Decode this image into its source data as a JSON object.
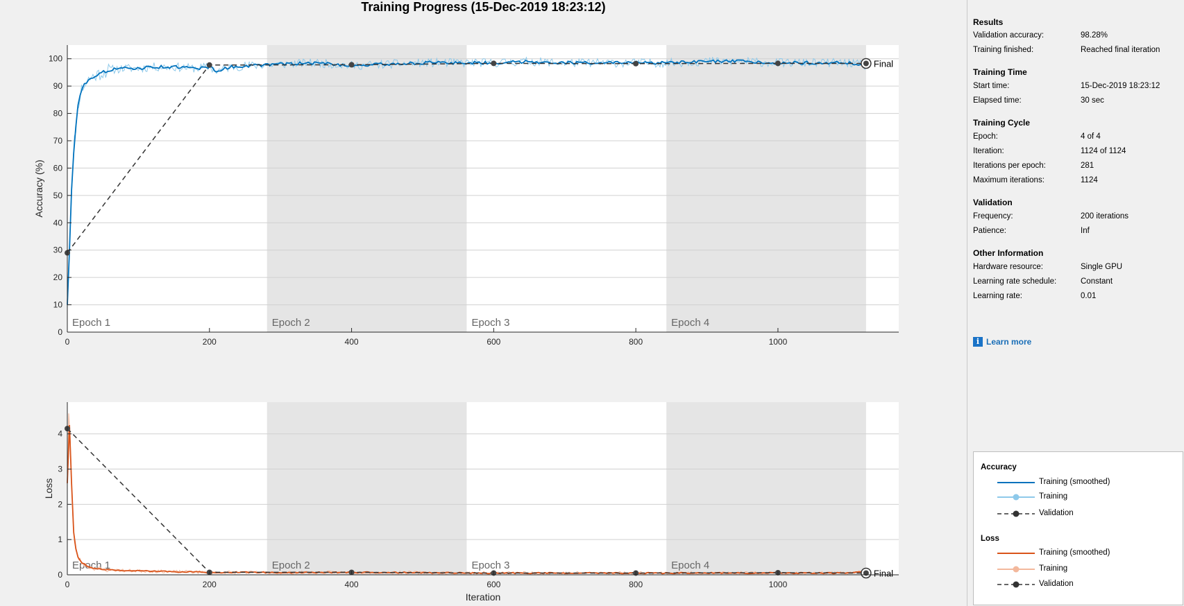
{
  "title": "Training Progress (15-Dec-2019 18:23:12)",
  "colors": {
    "accuracy_smoothed": "#0072bd",
    "accuracy_raw": "#8ec9ea",
    "loss_smoothed": "#d95319",
    "loss_raw": "#f3b89c",
    "validation": "#333333",
    "epoch_shade": "#e5e5e5"
  },
  "results": {
    "heading": "Results",
    "validation_accuracy_label": "Validation accuracy:",
    "validation_accuracy_value": "98.28%",
    "training_finished_label": "Training finished:",
    "training_finished_value": "Reached final iteration"
  },
  "training_time": {
    "heading": "Training Time",
    "start_time_label": "Start time:",
    "start_time_value": "15-Dec-2019 18:23:12",
    "elapsed_time_label": "Elapsed time:",
    "elapsed_time_value": "30 sec"
  },
  "training_cycle": {
    "heading": "Training Cycle",
    "epoch_label": "Epoch:",
    "epoch_value": "4 of 4",
    "iteration_label": "Iteration:",
    "iteration_value": "1124 of 1124",
    "iter_per_epoch_label": "Iterations per epoch:",
    "iter_per_epoch_value": "281",
    "max_iter_label": "Maximum iterations:",
    "max_iter_value": "1124"
  },
  "validation": {
    "heading": "Validation",
    "frequency_label": "Frequency:",
    "frequency_value": "200 iterations",
    "patience_label": "Patience:",
    "patience_value": "Inf"
  },
  "other_info": {
    "heading": "Other Information",
    "hardware_label": "Hardware resource:",
    "hardware_value": "Single GPU",
    "lr_schedule_label": "Learning rate schedule:",
    "lr_schedule_value": "Constant",
    "lr_label": "Learning rate:",
    "lr_value": "0.01"
  },
  "learn_more": {
    "icon": "info-icon",
    "label": "Learn more"
  },
  "legend": {
    "accuracy_heading": "Accuracy",
    "loss_heading": "Loss",
    "training_smoothed": "Training (smoothed)",
    "training": "Training",
    "validation": "Validation"
  },
  "chart_data": [
    {
      "type": "line",
      "xlabel": "Iteration",
      "ylabel": "Accuracy (%)",
      "xlim": [
        0,
        1170
      ],
      "ylim": [
        0,
        105
      ],
      "xticks": [
        0,
        200,
        400,
        600,
        800,
        1000
      ],
      "yticks": [
        0,
        10,
        20,
        30,
        40,
        50,
        60,
        70,
        80,
        90,
        100
      ],
      "grid": "horizontal",
      "epochs": [
        {
          "label": "Epoch 1",
          "start": 0,
          "end": 281,
          "shaded": false
        },
        {
          "label": "Epoch 2",
          "start": 281,
          "end": 562,
          "shaded": true
        },
        {
          "label": "Epoch 3",
          "start": 562,
          "end": 843,
          "shaded": false
        },
        {
          "label": "Epoch 4",
          "start": 843,
          "end": 1124,
          "shaded": true
        }
      ],
      "final_label": "Final",
      "series": [
        {
          "name": "Training (smoothed)",
          "x": [
            0,
            3,
            6,
            10,
            15,
            20,
            30,
            40,
            50,
            60,
            80,
            100,
            120,
            150,
            180,
            200,
            210,
            230,
            260,
            300,
            350,
            400,
            450,
            500,
            550,
            600,
            650,
            700,
            750,
            800,
            850,
            900,
            950,
            1000,
            1050,
            1100,
            1124
          ],
          "y": [
            10,
            30,
            52,
            70,
            83,
            89,
            92.5,
            94,
            95,
            96,
            96.5,
            96.5,
            97,
            97,
            96.5,
            97,
            95.5,
            97,
            97.5,
            98,
            98.5,
            97.5,
            98,
            98.5,
            98.5,
            98.5,
            99,
            98.5,
            98.5,
            98.5,
            98.5,
            99,
            99,
            98.5,
            98.5,
            98.5,
            97.5
          ]
        },
        {
          "name": "Validation",
          "x": [
            0,
            200,
            400,
            600,
            800,
            1000,
            1124
          ],
          "y": [
            29,
            97.7,
            97.8,
            98.3,
            98.2,
            98.3,
            98.28
          ]
        }
      ]
    },
    {
      "type": "line",
      "xlabel": "Iteration",
      "ylabel": "Loss",
      "xlim": [
        0,
        1170
      ],
      "ylim": [
        0,
        4.9
      ],
      "xticks": [
        0,
        200,
        400,
        600,
        800,
        1000
      ],
      "yticks": [
        0,
        1,
        2,
        3,
        4
      ],
      "grid": "horizontal",
      "epochs": [
        {
          "label": "Epoch 1",
          "start": 0,
          "end": 281,
          "shaded": false
        },
        {
          "label": "Epoch 2",
          "start": 281,
          "end": 562,
          "shaded": true
        },
        {
          "label": "Epoch 3",
          "start": 562,
          "end": 843,
          "shaded": false
        },
        {
          "label": "Epoch 4",
          "start": 843,
          "end": 1124,
          "shaded": true
        }
      ],
      "final_label": "Final",
      "series": [
        {
          "name": "Training (smoothed)",
          "x": [
            0,
            2,
            4,
            6,
            8,
            10,
            15,
            20,
            30,
            50,
            80,
            120,
            200,
            250,
            300,
            400,
            500,
            600,
            700,
            800,
            900,
            1000,
            1100,
            1124
          ],
          "y": [
            2.6,
            4.6,
            3.9,
            2.6,
            1.5,
            0.9,
            0.5,
            0.35,
            0.22,
            0.15,
            0.12,
            0.1,
            0.07,
            0.07,
            0.06,
            0.07,
            0.06,
            0.05,
            0.05,
            0.05,
            0.05,
            0.05,
            0.05,
            0.09
          ]
        },
        {
          "name": "Validation",
          "x": [
            0,
            200,
            400,
            600,
            800,
            1000,
            1124
          ],
          "y": [
            4.15,
            0.07,
            0.07,
            0.05,
            0.05,
            0.06,
            0.05
          ]
        }
      ]
    }
  ]
}
